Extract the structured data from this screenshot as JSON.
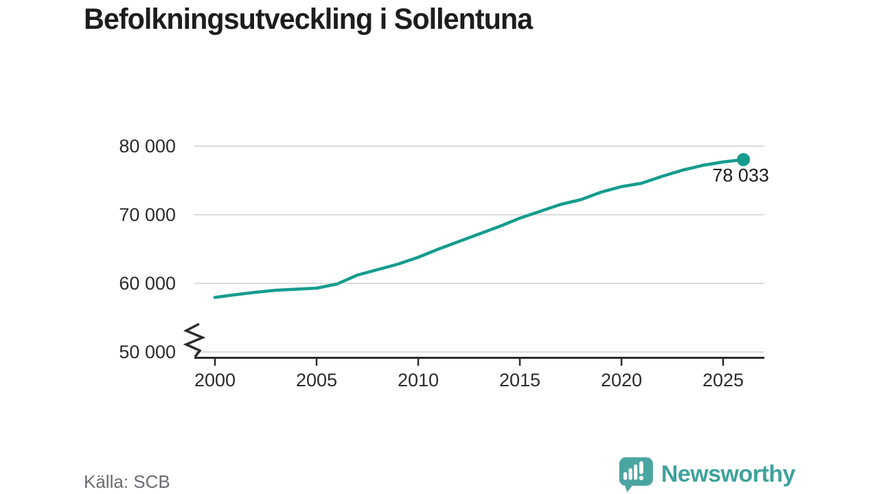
{
  "chart_data": {
    "type": "line",
    "title": "Befolkningsutveckling i Sollentuna",
    "xlabel": "",
    "ylabel": "",
    "x": [
      2000,
      2001,
      2002,
      2003,
      2004,
      2005,
      2006,
      2007,
      2008,
      2009,
      2010,
      2011,
      2012,
      2013,
      2014,
      2015,
      2016,
      2017,
      2018,
      2019,
      2020,
      2021,
      2022,
      2023,
      2024,
      2025,
      2026
    ],
    "values": [
      57950,
      58350,
      58700,
      59000,
      59150,
      59300,
      59900,
      61200,
      62000,
      62800,
      63800,
      65000,
      66100,
      67200,
      68300,
      69500,
      70500,
      71500,
      72200,
      73300,
      74100,
      74600,
      75600,
      76500,
      77200,
      77700,
      78033
    ],
    "ylim": [
      50000,
      80000
    ],
    "xlim": [
      1999,
      2027
    ],
    "y_ticks": [
      50000,
      60000,
      70000,
      80000
    ],
    "y_tick_labels": [
      "50 000",
      "60 000",
      "70 000",
      "80 000"
    ],
    "x_ticks": [
      2000,
      2005,
      2010,
      2015,
      2020,
      2025
    ],
    "x_tick_labels": [
      "2000",
      "2005",
      "2010",
      "2015",
      "2020",
      "2025"
    ],
    "grid": "horizontal",
    "legend": "none",
    "axis_break": true,
    "end_point_value": 78033,
    "end_label": "78 033",
    "line_color": "#159c8d",
    "grid_color": "#dcdcdc",
    "axis_color": "#2b2b2b",
    "tick_label_color": "#2b2b2b",
    "end_label_color": "#1a1a1a"
  },
  "footer": {
    "source": "Källa: SCB",
    "brand": "Newsworthy",
    "brand_color": "#3fa29c",
    "logo_bubble_color": "#4aa5a0"
  }
}
